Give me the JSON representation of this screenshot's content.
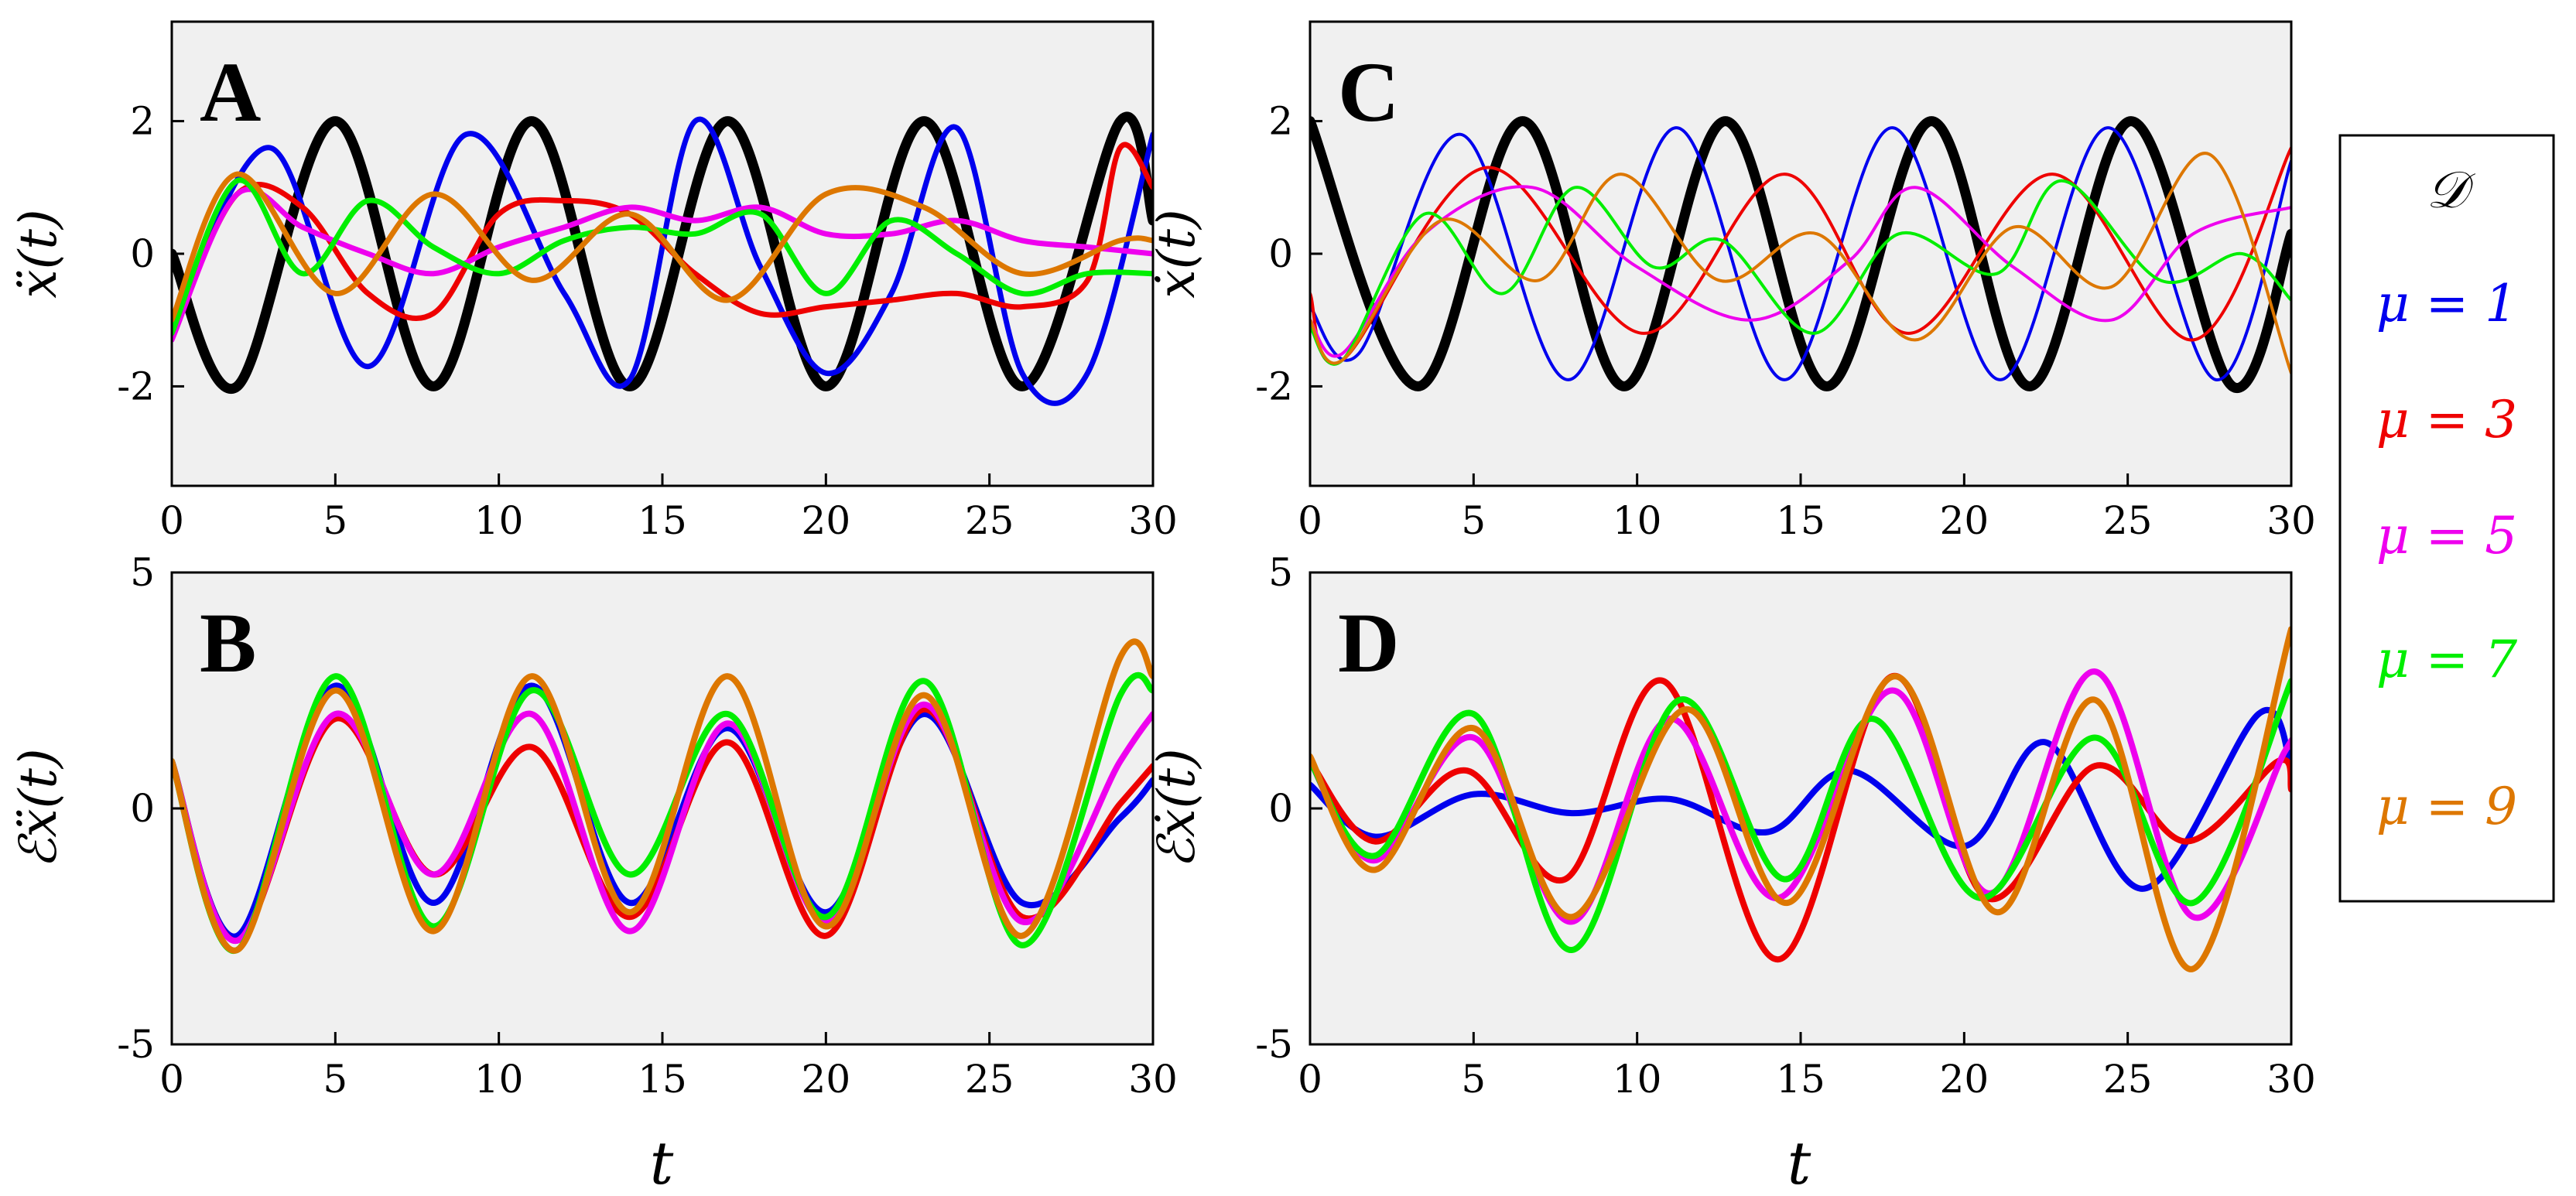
{
  "figure": {
    "xlabel_bottom_left": "t",
    "xlabel_bottom_right": "t"
  },
  "legend": {
    "title": "𝒟",
    "placement": "right",
    "entries": [
      {
        "label": "μ = 1",
        "color": "#0000ee"
      },
      {
        "label": "μ = 3",
        "color": "#ee0000"
      },
      {
        "label": "μ = 5",
        "color": "#ee00ee"
      },
      {
        "label": "μ = 7",
        "color": "#00ee00"
      },
      {
        "label": "μ = 9",
        "color": "#dd7700"
      }
    ]
  },
  "colors": {
    "truth": "#000000",
    "mu1": "#0000ee",
    "mu3": "#ee0000",
    "mu5": "#ee00ee",
    "mu7": "#00ee00",
    "mu9": "#dd7700",
    "panel_bg": "#f0f0f0"
  },
  "chart_data": [
    {
      "panel": "A",
      "type": "line",
      "ylabel": "ẍ(t)",
      "xlim": [
        0,
        30
      ],
      "ylim": [
        -3.5,
        3.5
      ],
      "xticks": [
        "0",
        "5",
        "10",
        "15",
        "20",
        "25",
        "30"
      ],
      "yticks": [
        "2",
        "0",
        "-2"
      ],
      "grid": false,
      "series": [
        {
          "key": "truth",
          "x": [
            0,
            2,
            5,
            8,
            11,
            14,
            17,
            20,
            23,
            26,
            29,
            30
          ],
          "y": [
            0,
            -2,
            2,
            -2,
            2,
            -2,
            2,
            -2,
            2,
            -2,
            2,
            0.5
          ]
        },
        {
          "key": "mu1",
          "x": [
            0,
            3,
            6,
            9,
            12,
            14,
            16,
            18,
            20,
            22,
            24,
            26,
            28,
            30
          ],
          "y": [
            -1.2,
            1.6,
            -1.7,
            1.8,
            -0.6,
            -1.9,
            2.0,
            -0.2,
            -1.8,
            -0.6,
            1.9,
            -1.8,
            -1.8,
            1.8
          ]
        },
        {
          "key": "mu3",
          "x": [
            0,
            2,
            4,
            6,
            8,
            10,
            12,
            14,
            16,
            18,
            20,
            22,
            24,
            26,
            28,
            29,
            30
          ],
          "y": [
            -1.2,
            0.9,
            0.7,
            -0.6,
            -0.9,
            0.6,
            0.8,
            0.6,
            -0.3,
            -0.9,
            -0.8,
            -0.7,
            -0.6,
            -0.8,
            -0.4,
            1.6,
            1.0
          ]
        },
        {
          "key": "mu5",
          "x": [
            0,
            2,
            4,
            6,
            8,
            10,
            12,
            14,
            16,
            18,
            20,
            22,
            24,
            26,
            28,
            30
          ],
          "y": [
            -1.3,
            0.9,
            0.4,
            0.0,
            -0.3,
            0.1,
            0.4,
            0.7,
            0.5,
            0.7,
            0.3,
            0.3,
            0.5,
            0.2,
            0.1,
            0.0
          ]
        },
        {
          "key": "mu7",
          "x": [
            0,
            2,
            4,
            6,
            8,
            10,
            12,
            14,
            16,
            18,
            20,
            22,
            24,
            26,
            28,
            30
          ],
          "y": [
            -1.2,
            1.1,
            -0.3,
            0.8,
            0.1,
            -0.3,
            0.2,
            0.4,
            0.3,
            0.6,
            -0.6,
            0.5,
            0.0,
            -0.6,
            -0.3,
            -0.3
          ]
        },
        {
          "key": "mu9",
          "x": [
            0,
            2,
            5,
            8,
            11,
            14,
            17,
            20,
            23,
            26,
            29,
            30
          ],
          "y": [
            -1.0,
            1.2,
            -0.6,
            0.9,
            -0.4,
            0.6,
            -0.7,
            0.9,
            0.7,
            -0.3,
            0.2,
            0.2
          ]
        }
      ]
    },
    {
      "panel": "B",
      "type": "line",
      "ylabel": "ℰẍ(t)",
      "xlim": [
        0,
        30
      ],
      "ylim": [
        -5,
        5
      ],
      "xticks": [
        "0",
        "5",
        "10",
        "15",
        "20",
        "25",
        "30"
      ],
      "yticks": [
        "5",
        "0",
        "-5"
      ],
      "grid": false,
      "series": [
        {
          "key": "mu1",
          "x": [
            0,
            2,
            5,
            8,
            11,
            14,
            17,
            20,
            23,
            26,
            29,
            30
          ],
          "y": [
            1.0,
            -2.7,
            2.6,
            -2.0,
            2.6,
            -2.0,
            1.7,
            -2.2,
            2.0,
            -2.0,
            -0.2,
            0.6
          ]
        },
        {
          "key": "mu3",
          "x": [
            0,
            2,
            5,
            8,
            11,
            14,
            17,
            20,
            23,
            26,
            29,
            30
          ],
          "y": [
            1.0,
            -2.8,
            1.9,
            -1.4,
            1.3,
            -2.3,
            1.4,
            -2.7,
            2.1,
            -2.3,
            0.1,
            0.9
          ]
        },
        {
          "key": "mu5",
          "x": [
            0,
            2,
            5,
            8,
            11,
            14,
            17,
            20,
            23,
            26,
            29,
            30
          ],
          "y": [
            1.0,
            -2.8,
            2.0,
            -1.4,
            2.0,
            -2.6,
            1.8,
            -2.4,
            2.2,
            -2.4,
            1.0,
            2.0
          ]
        },
        {
          "key": "mu7",
          "x": [
            0,
            2,
            5,
            8,
            11,
            14,
            17,
            20,
            23,
            26,
            29,
            30
          ],
          "y": [
            1.0,
            -3.0,
            2.8,
            -2.5,
            2.5,
            -1.4,
            2.0,
            -2.3,
            2.7,
            -2.9,
            2.4,
            2.5
          ]
        },
        {
          "key": "mu9",
          "x": [
            0,
            2,
            5,
            8,
            11,
            14,
            17,
            20,
            23,
            26,
            29,
            30
          ],
          "y": [
            1.0,
            -3.0,
            2.5,
            -2.6,
            2.8,
            -2.2,
            2.8,
            -2.5,
            2.4,
            -2.7,
            3.2,
            2.8
          ]
        }
      ]
    },
    {
      "panel": "C",
      "type": "line",
      "ylabel": "ẋ(t)",
      "xlim": [
        0,
        30
      ],
      "ylim": [
        -3.5,
        3.5
      ],
      "xticks": [
        "0",
        "5",
        "10",
        "15",
        "20",
        "25",
        "30"
      ],
      "yticks": [
        "2",
        "0",
        "-2"
      ],
      "grid": false,
      "series": [
        {
          "key": "truth",
          "x": [
            0,
            3.3,
            6.5,
            9.6,
            12.7,
            15.8,
            19,
            22,
            25.1,
            28.2,
            30
          ],
          "y": [
            2,
            -2,
            2,
            -2,
            2,
            -2,
            2,
            -2,
            2,
            -2,
            0.3
          ]
        },
        {
          "key": "mu1",
          "x": [
            0,
            1.5,
            4.6,
            7.9,
            11.2,
            14.5,
            17.8,
            21.1,
            24.4,
            27.7,
            30
          ],
          "y": [
            -0.8,
            -1.5,
            1.8,
            -1.9,
            1.9,
            -1.9,
            1.9,
            -1.9,
            1.9,
            -1.9,
            1.4
          ]
        },
        {
          "key": "mu3",
          "x": [
            0,
            1,
            5.4,
            10.2,
            14.5,
            18.3,
            22.7,
            27,
            30
          ],
          "y": [
            -0.6,
            -1.6,
            1.3,
            -1.2,
            1.2,
            -1.2,
            1.2,
            -1.3,
            1.6
          ]
        },
        {
          "key": "mu5",
          "x": [
            0,
            1,
            3.5,
            6.8,
            10,
            13.5,
            16.5,
            18.5,
            21.5,
            24.5,
            27,
            30
          ],
          "y": [
            -1.0,
            -1.5,
            0.3,
            1.0,
            -0.2,
            -1.0,
            -0.1,
            1.0,
            -0.2,
            -1.0,
            0.3,
            0.7
          ]
        },
        {
          "key": "mu7",
          "x": [
            0,
            1,
            3.5,
            5.9,
            8.1,
            10.5,
            12.6,
            15.4,
            18,
            21,
            23,
            26,
            28.5,
            30
          ],
          "y": [
            -1.1,
            -1.6,
            0.6,
            -0.6,
            1.0,
            -0.2,
            0.2,
            -1.2,
            0.3,
            -0.3,
            1.1,
            -0.4,
            0.0,
            -0.7
          ]
        },
        {
          "key": "mu9",
          "x": [
            0,
            1,
            4,
            7,
            9.5,
            12.5,
            15.5,
            18.5,
            21.5,
            24.5,
            27.5,
            30
          ],
          "y": [
            -1.0,
            -1.6,
            0.5,
            -0.4,
            1.2,
            -0.4,
            0.3,
            -1.3,
            0.4,
            -0.5,
            1.5,
            -1.8
          ]
        }
      ]
    },
    {
      "panel": "D",
      "type": "line",
      "ylabel": "ℰẋ(t)",
      "xlim": [
        0,
        30
      ],
      "ylim": [
        -5,
        5
      ],
      "xticks": [
        "0",
        "5",
        "10",
        "15",
        "20",
        "25",
        "30"
      ],
      "yticks": [
        "5",
        "0",
        "-5"
      ],
      "grid": false,
      "series": [
        {
          "key": "mu1",
          "x": [
            0,
            2,
            5,
            8,
            11,
            14,
            16.5,
            20,
            22.5,
            25.5,
            29,
            30
          ],
          "y": [
            0.5,
            -0.6,
            0.3,
            -0.1,
            0.2,
            -0.5,
            0.8,
            -0.8,
            1.4,
            -1.7,
            2.0,
            0.9
          ]
        },
        {
          "key": "mu3",
          "x": [
            0,
            2,
            4.8,
            7.8,
            10.8,
            14.3,
            17.8,
            20.7,
            24,
            26.8,
            29.6,
            30
          ],
          "y": [
            1.0,
            -0.7,
            0.8,
            -1.5,
            2.7,
            -3.2,
            2.8,
            -1.9,
            0.9,
            -0.7,
            1.0,
            0.4
          ]
        },
        {
          "key": "mu5",
          "x": [
            0,
            2,
            5,
            8,
            11,
            14.3,
            17.8,
            20.8,
            24,
            27,
            29.8,
            30
          ],
          "y": [
            1.0,
            -1.1,
            1.5,
            -2.4,
            1.9,
            -1.9,
            2.5,
            -1.8,
            2.9,
            -2.3,
            1.2,
            1.3
          ]
        },
        {
          "key": "mu7",
          "x": [
            0,
            2,
            5,
            8,
            11.3,
            14.5,
            17.2,
            20.5,
            24,
            27,
            30
          ],
          "y": [
            1.0,
            -1.0,
            2.0,
            -3.0,
            2.3,
            -1.5,
            1.9,
            -1.9,
            1.5,
            -2.0,
            2.7
          ]
        },
        {
          "key": "mu9",
          "x": [
            0,
            2,
            5,
            8,
            11.5,
            14.6,
            17.9,
            21,
            24,
            27,
            30
          ],
          "y": [
            1.1,
            -1.3,
            1.7,
            -2.3,
            2.1,
            -2.0,
            2.8,
            -2.2,
            2.3,
            -3.4,
            3.8
          ]
        }
      ]
    }
  ]
}
